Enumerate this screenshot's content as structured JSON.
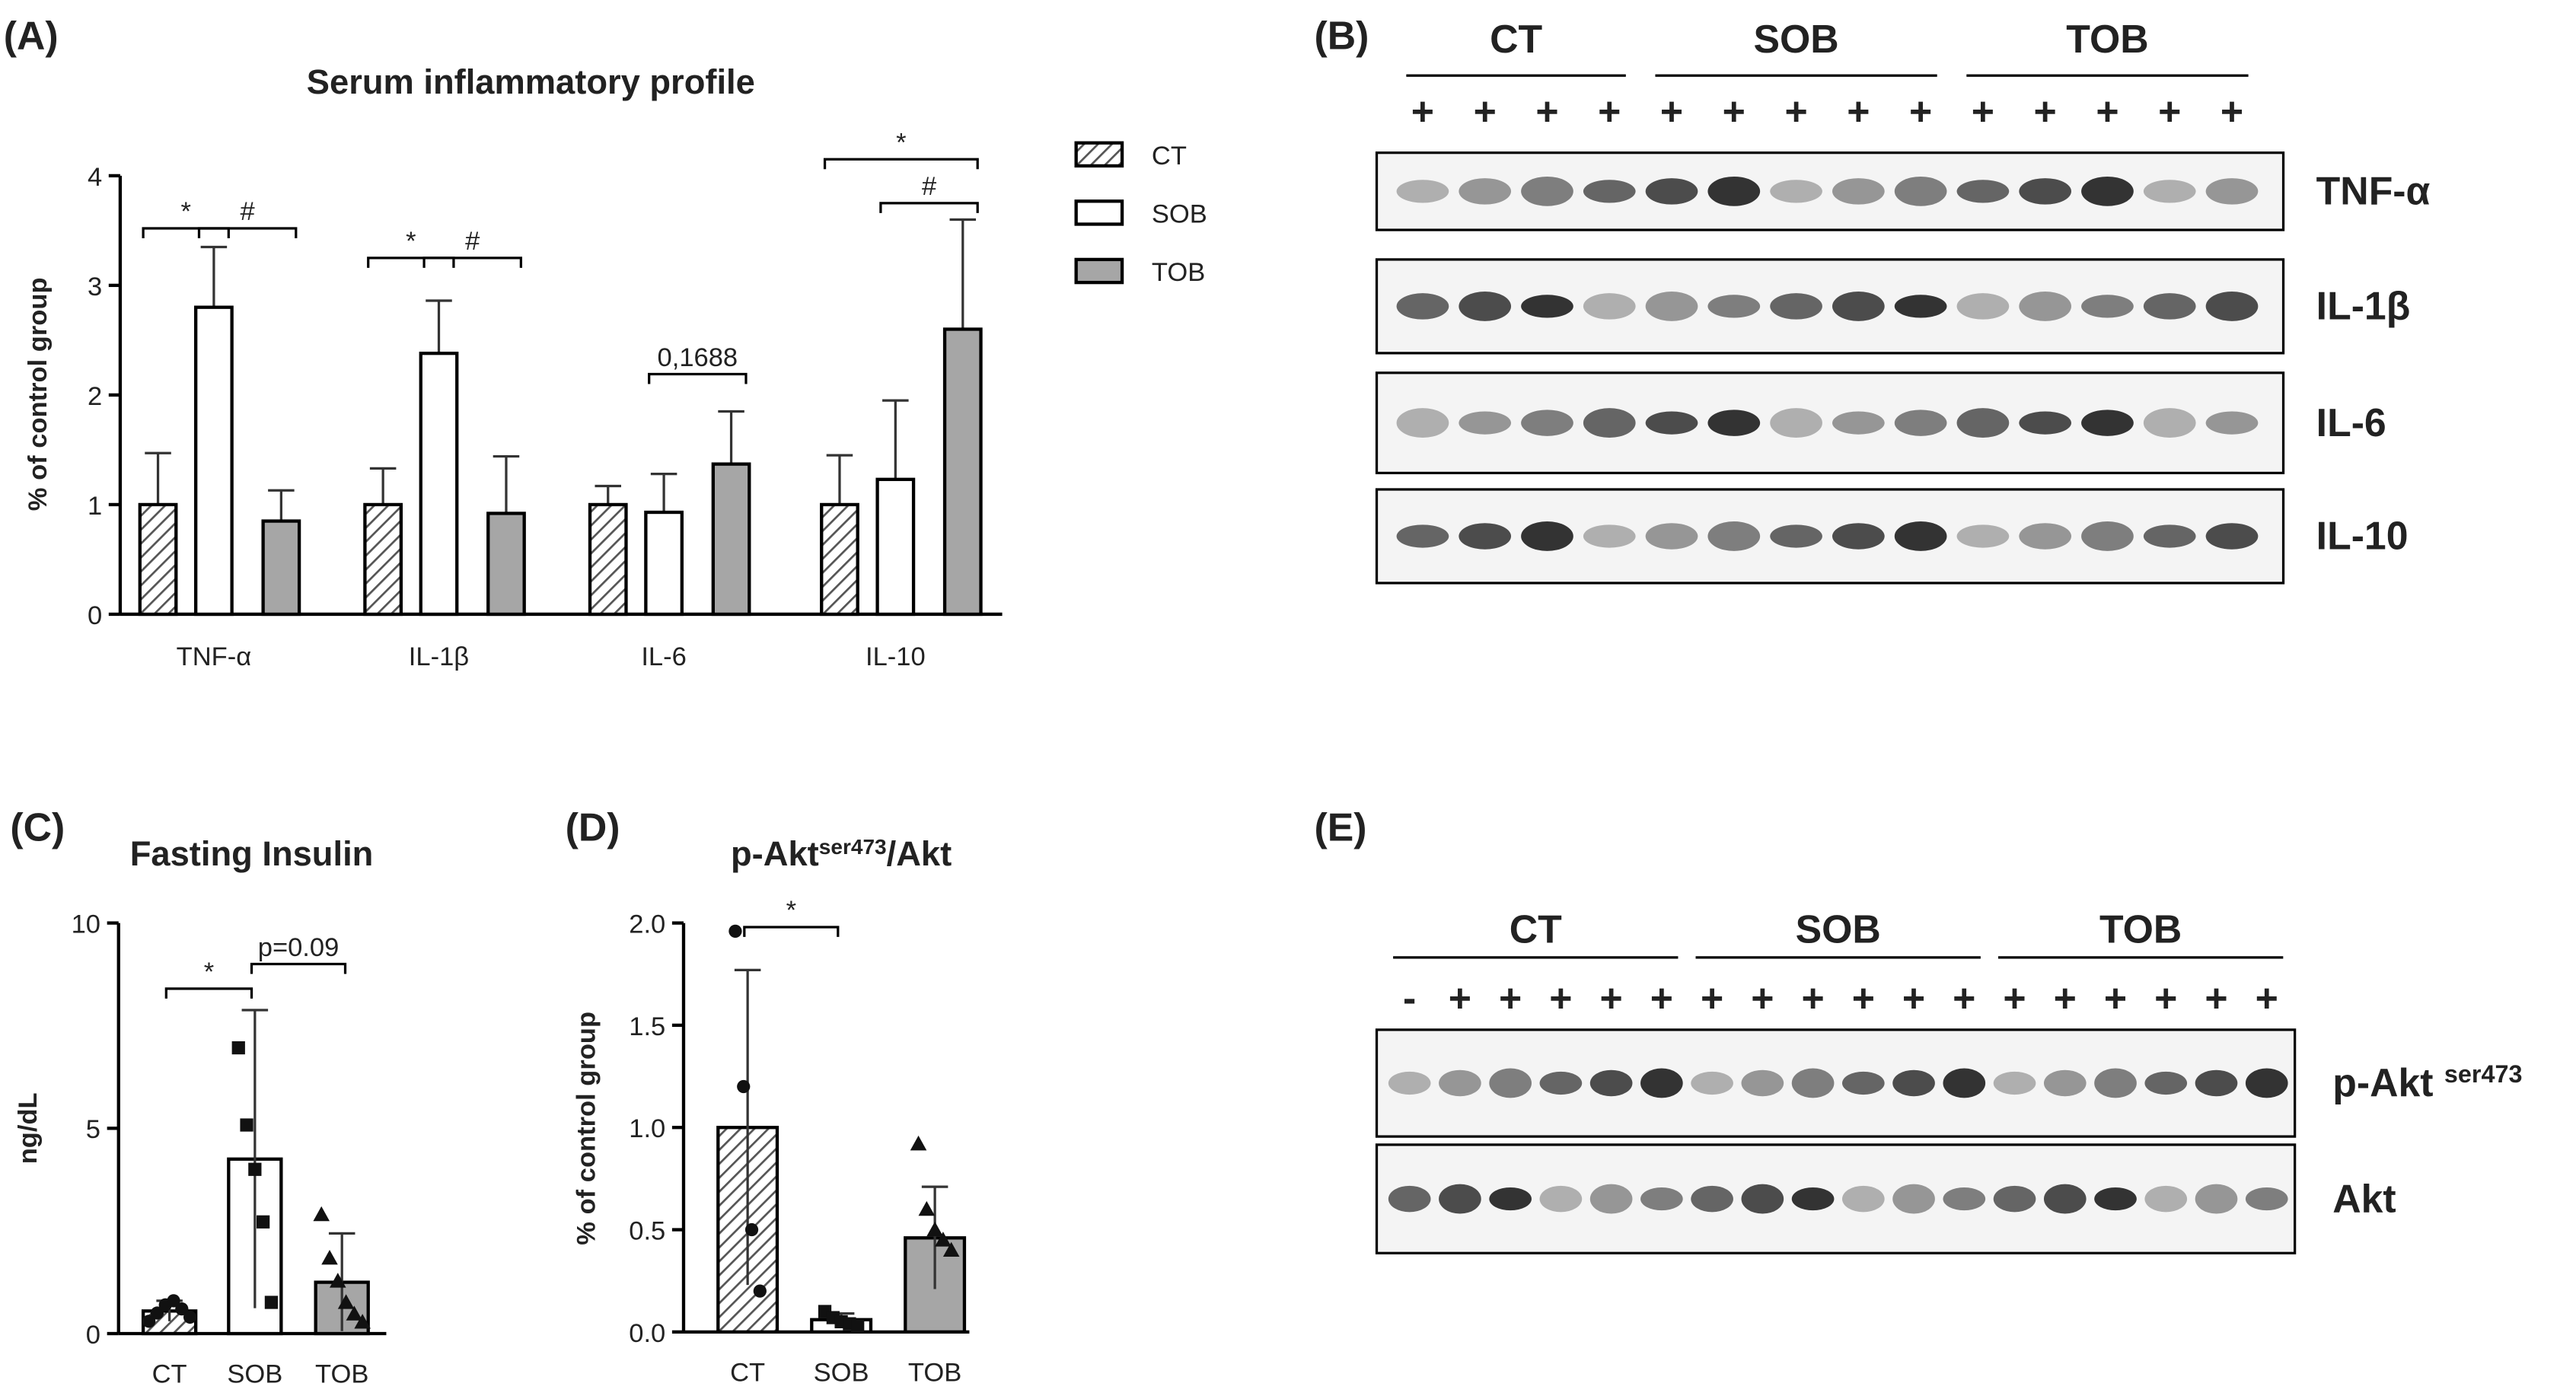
{
  "panel_labels": [
    "(A)",
    "(B)",
    "(C)",
    "(D)",
    "(E)"
  ],
  "chart_data": [
    {
      "type": "grouped_bar",
      "title": "Serum inflammatory profile",
      "y_label": "% of control group",
      "categories": [
        "TNF-α",
        "IL-1β",
        "IL-6",
        "IL-10"
      ],
      "series": [
        {
          "name": "CT",
          "color": "#ffffff",
          "pattern": "hatch",
          "values": [
            1,
            1,
            1,
            1
          ],
          "errors": [
            0.47,
            0.33,
            0.17,
            0.45
          ]
        },
        {
          "name": "SOB",
          "color": "#ffffff",
          "values": [
            2.8,
            2.38,
            0.93,
            1.23
          ],
          "errors": [
            0.55,
            0.48,
            0.35,
            0.72
          ]
        },
        {
          "name": "TOB",
          "color": "#a6a6a6",
          "values": [
            0.85,
            0.92,
            1.37,
            2.6
          ],
          "errors": [
            0.28,
            0.52,
            0.48,
            1.0
          ]
        }
      ],
      "ylim": [
        0,
        4
      ],
      "yticks": [
        0,
        1,
        2,
        3,
        4
      ],
      "legend": "right",
      "annotations": [
        {
          "text": "*",
          "category": 0,
          "series": [
            0,
            1
          ],
          "y": 3.52
        },
        {
          "text": "#",
          "category": 0,
          "series": [
            1,
            2
          ],
          "y": 3.52
        },
        {
          "text": "*",
          "category": 1,
          "series": [
            0,
            1
          ],
          "y": 3.25
        },
        {
          "text": "#",
          "category": 1,
          "series": [
            1,
            2
          ],
          "y": 3.25
        },
        {
          "text": "0,1688",
          "category": 2,
          "series": [
            1,
            2
          ],
          "y": 2.19
        },
        {
          "text": "*",
          "category": 3,
          "series": [
            0,
            2
          ],
          "y": 4.15
        },
        {
          "text": "#",
          "category": 3,
          "series": [
            1,
            2
          ],
          "y": 3.75
        }
      ]
    },
    {
      "type": "bar_dots",
      "title": "Fasting Insulin",
      "y_label": "ng/dL",
      "categories": [
        "CT",
        "SOB",
        "TOB"
      ],
      "values": [
        0.55,
        4.25,
        1.25
      ],
      "errors": [
        0.25,
        3.63,
        1.19
      ],
      "colors": [
        "#ffffff",
        "#ffffff",
        "#a6a6a6"
      ],
      "hatch": [
        true,
        false,
        false
      ],
      "markers": [
        "circle",
        "square",
        "triangle"
      ],
      "points": [
        [
          0.3,
          0.5,
          0.7,
          0.8,
          0.6,
          0.4
        ],
        [
          6.96,
          5.08,
          4.0,
          2.72,
          0.76
        ],
        [
          2.9,
          1.84,
          1.28,
          0.76,
          0.48,
          0.28
        ]
      ],
      "ylim": [
        0,
        10
      ],
      "yticks": [
        0,
        5,
        10
      ],
      "annotations": [
        {
          "text": "*",
          "between": [
            0,
            1
          ],
          "y": 8.4
        },
        {
          "text": "p=0.09",
          "between": [
            1,
            2
          ],
          "y": 9.0
        }
      ]
    },
    {
      "type": "bar_dots",
      "title": "p-Akt",
      "title_sup": "ser473",
      "title_suffix": "/Akt",
      "y_label": "% of control group",
      "categories": [
        "CT",
        "SOB",
        "TOB"
      ],
      "values": [
        1.0,
        0.06,
        0.46
      ],
      "errors": [
        0.77,
        0.03,
        0.25
      ],
      "colors": [
        "#ffffff",
        "#ffffff",
        "#a6a6a6"
      ],
      "hatch": [
        true,
        false,
        false
      ],
      "markers": [
        "circle",
        "square",
        "triangle"
      ],
      "points": [
        [
          1.96,
          1.2,
          0.5,
          0.2
        ],
        [
          0.1,
          0.07,
          0.05,
          0.04,
          0.03
        ],
        [
          0.92,
          0.6,
          0.5,
          0.45,
          0.4
        ]
      ],
      "ylim": [
        0,
        2.0
      ],
      "yticks": [
        {
          "value": 0,
          "label": "0.0"
        },
        {
          "value": 0.5,
          "label": "0.5"
        },
        {
          "value": 1,
          "label": "1.0"
        },
        {
          "value": 1.5,
          "label": "1.5"
        },
        {
          "value": 2,
          "label": "2.0"
        }
      ],
      "annotations": [
        {
          "text": "*",
          "between": [
            0,
            1
          ],
          "y": 1.98
        }
      ]
    }
  ],
  "blots": [
    {
      "groups": [
        {
          "label": "CT",
          "lanes": [
            "+",
            "+",
            "+",
            "+"
          ]
        },
        {
          "label": "SOB",
          "lanes": [
            "+",
            "+",
            "+",
            "+",
            "+"
          ]
        },
        {
          "label": "TOB",
          "lanes": [
            "+",
            "+",
            "+",
            "+",
            "+"
          ]
        }
      ],
      "bands": [
        {
          "text": "TNF-α"
        },
        {
          "text": "IL-1β"
        },
        {
          "text": "IL-6"
        },
        {
          "text": "IL-10"
        }
      ]
    },
    {
      "groups": [
        {
          "label": "CT",
          "lanes": [
            "-",
            "+",
            "+",
            "+",
            "+",
            "+"
          ]
        },
        {
          "label": "SOB",
          "lanes": [
            "+",
            "+",
            "+",
            "+",
            "+",
            "+"
          ]
        },
        {
          "label": "TOB",
          "lanes": [
            "+",
            "+",
            "+",
            "+",
            "+",
            "+"
          ]
        }
      ],
      "bands": [
        {
          "text": "p-Akt ",
          "sup": "ser473"
        },
        {
          "text": "Akt"
        }
      ]
    }
  ]
}
